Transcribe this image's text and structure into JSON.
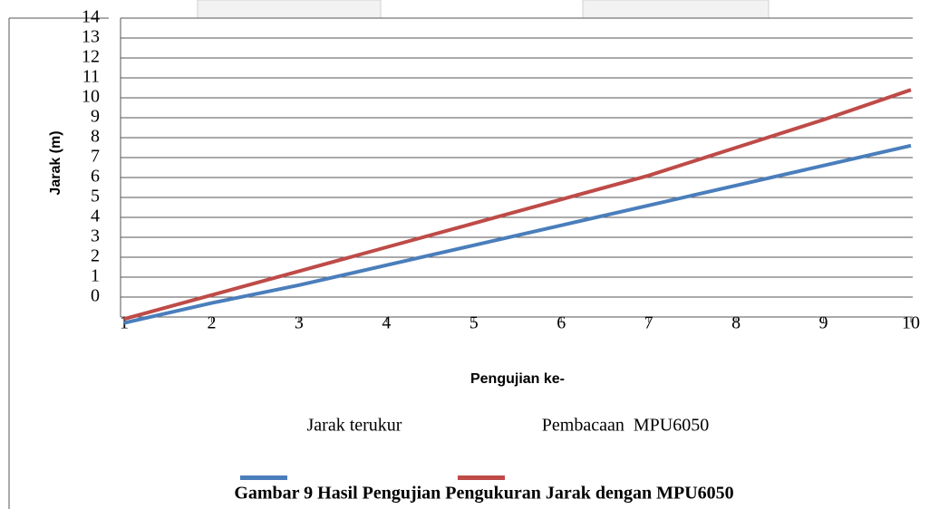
{
  "chart_data": {
    "type": "line",
    "caption": "Gambar 9 Hasil Pengujian Pengukuran Jarak dengan MPU6050",
    "x_label": "Pengujian ke-",
    "y_label": "Jarak (m)",
    "x": [
      1,
      2,
      3,
      4,
      5,
      6,
      7,
      8,
      9,
      10
    ],
    "series": [
      {
        "name": "Jarak terukur",
        "color": "#4a7ebb",
        "values": [
          -1.3,
          -0.3,
          0.6,
          1.6,
          2.6,
          3.6,
          4.6,
          5.6,
          6.6,
          7.6
        ]
      },
      {
        "name": "Pembacaan  MPU6050",
        "color": "#be4b48",
        "values": [
          -1.1,
          0.1,
          1.3,
          2.5,
          3.7,
          4.9,
          6.1,
          7.5,
          8.9,
          10.4
        ]
      }
    ],
    "xlim": [
      1,
      10
    ],
    "xticks": [
      1,
      2,
      3,
      4,
      5,
      6,
      7,
      8,
      9,
      10
    ],
    "ylim": [
      -1,
      14
    ],
    "yticks": [
      0,
      1,
      2,
      3,
      4,
      5,
      6,
      7,
      8,
      9,
      10,
      11,
      12,
      13,
      14
    ],
    "grid": true
  }
}
